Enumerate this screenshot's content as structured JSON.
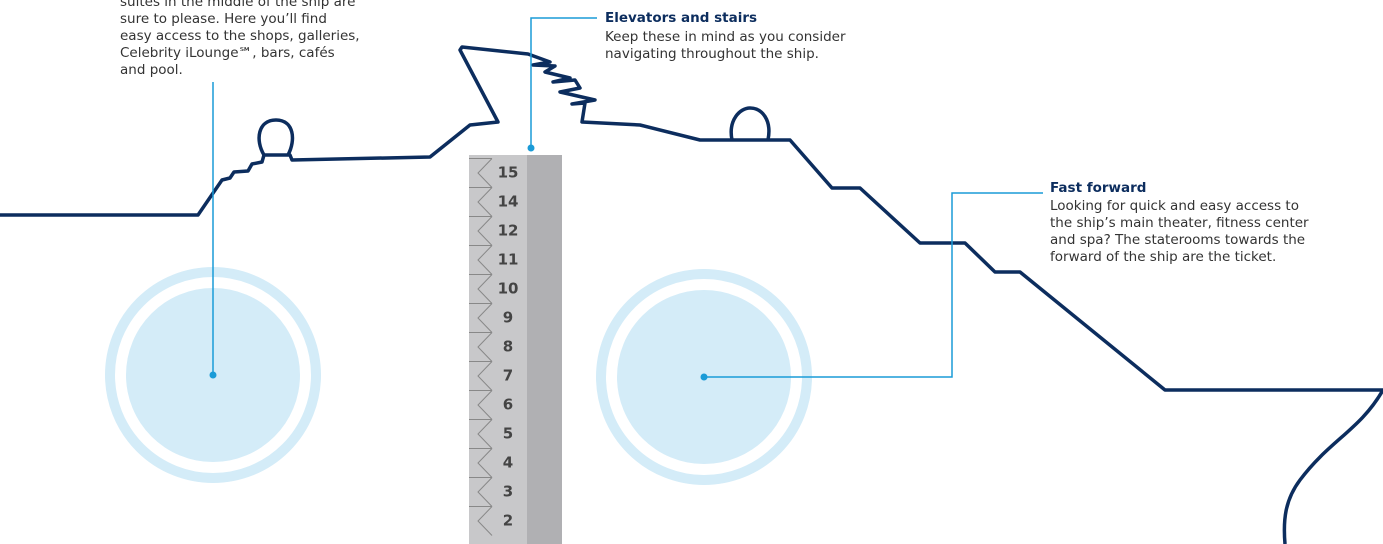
{
  "callouts": [
    {
      "lines": [
        "suites in the middle of the ship are",
        "sure to please. Here you’ll find",
        "easy access to the shops, galleries,",
        "Celebrity iLounge℠, bars, cafés",
        "and pool."
      ]
    },
    {
      "title": "Elevators and stairs",
      "lines": [
        "Keep these in mind as you consider",
        "navigating throughout the ship."
      ]
    },
    {
      "title": "Fast forward",
      "lines": [
        "Looking for quick and easy access to",
        "the ship’s main theater, fitness center",
        "and spa? The staterooms towards the",
        "forward of the ship are the ticket."
      ]
    }
  ],
  "decks": [
    15,
    14,
    12,
    11,
    10,
    9,
    8,
    7,
    6,
    5,
    4,
    3,
    2
  ]
}
